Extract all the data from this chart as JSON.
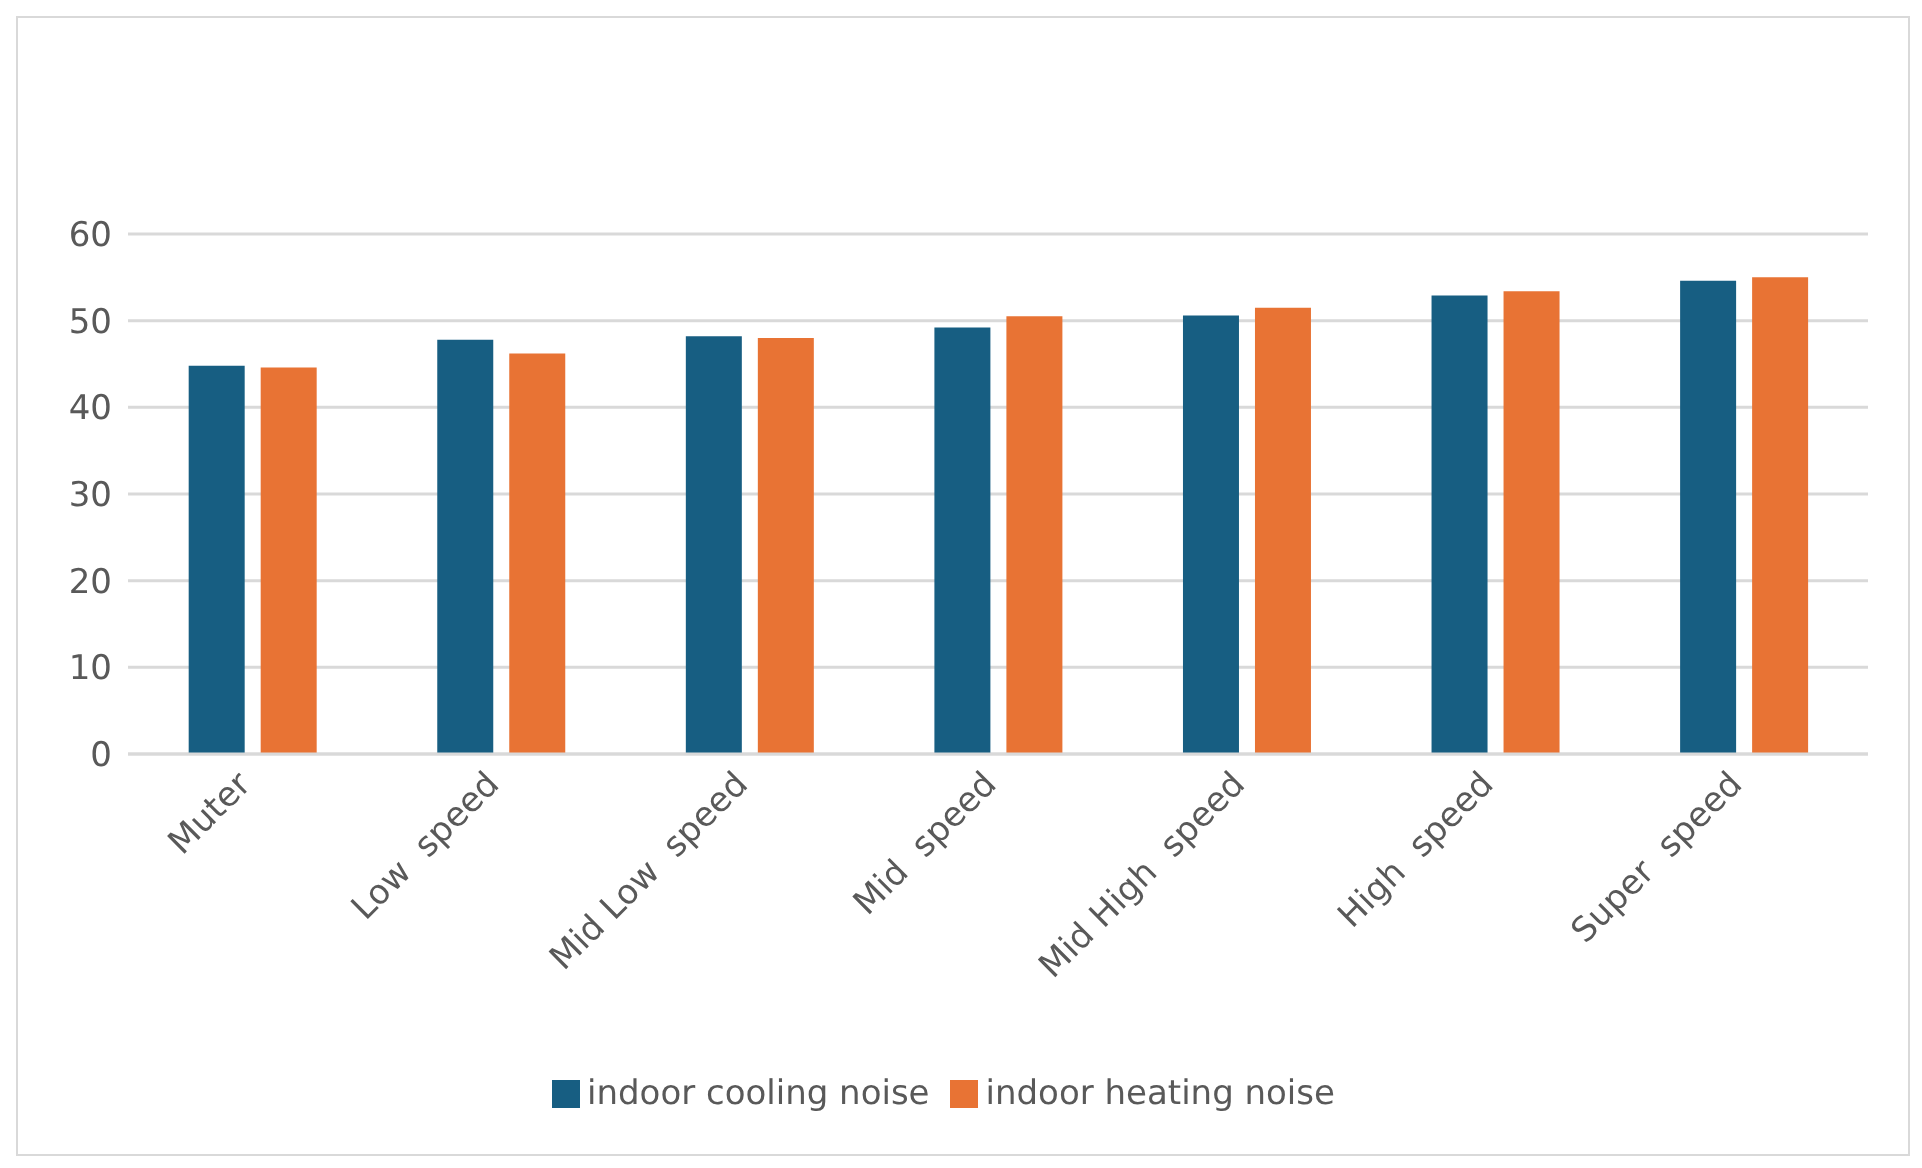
{
  "chart_data": {
    "type": "bar",
    "categories": [
      "Muter",
      "Low  speed",
      "Mid Low  speed",
      "Mid  speed",
      "Mid High  speed",
      "High  speed",
      "Super  speed"
    ],
    "series": [
      {
        "name": "indoor  cooling  noise",
        "color": "#175e82",
        "values": [
          44.8,
          47.8,
          48.2,
          49.2,
          50.6,
          52.9,
          54.6
        ]
      },
      {
        "name": "indoor  heating  noise",
        "color": "#e87334",
        "values": [
          44.6,
          46.2,
          48.0,
          50.5,
          51.5,
          53.4,
          55.0
        ]
      }
    ],
    "ylim": [
      0,
      60
    ],
    "yticks": [
      0,
      10,
      20,
      30,
      40,
      50,
      60
    ],
    "grid": "y",
    "legend": "bottom"
  }
}
